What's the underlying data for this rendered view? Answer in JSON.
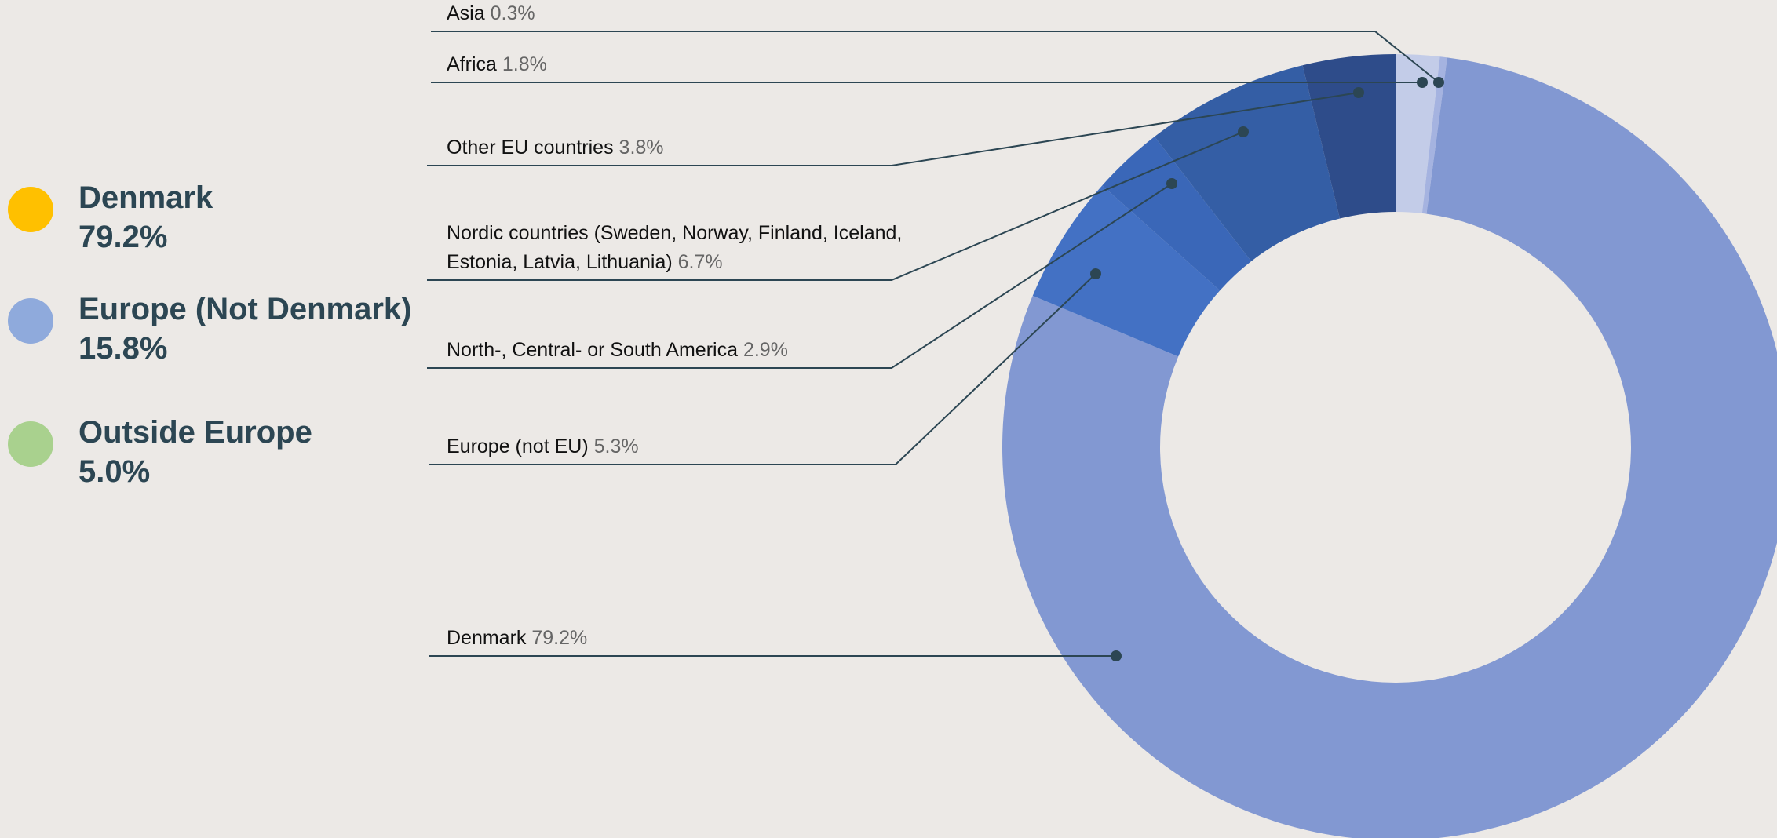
{
  "chart_data": {
    "type": "pie",
    "donut": true,
    "categories": [
      "Africa",
      "Asia",
      "Denmark",
      "Europe (not EU)",
      "North-, Central- or South America",
      "Nordic countries (Sweden, Norway, Finland, Iceland, Estonia, Latvia, Lithuania)",
      "Other EU countries"
    ],
    "values": [
      1.8,
      0.3,
      79.2,
      5.3,
      2.9,
      6.7,
      3.8
    ],
    "value_labels": [
      "1.8%",
      "0.3%",
      "79.2%",
      "5.3%",
      "2.9%",
      "6.7%",
      "3.8%"
    ],
    "colors": [
      "#c3cce8",
      "#a5b3e0",
      "#8298d2",
      "#4371c4",
      "#3a67b8",
      "#345ea5",
      "#2e4c8a"
    ],
    "legend_groups": [
      {
        "name": "Denmark",
        "value": 79.2,
        "value_label": "79.2%",
        "color": "#ffc000"
      },
      {
        "name": "Europe (Not Denmark)",
        "value": 15.8,
        "value_label": "15.8%",
        "color": "#8faadc"
      },
      {
        "name": "Outside Europe",
        "value": 5,
        "value_label": "5.0%",
        "color": "#a9d18e"
      }
    ]
  }
}
